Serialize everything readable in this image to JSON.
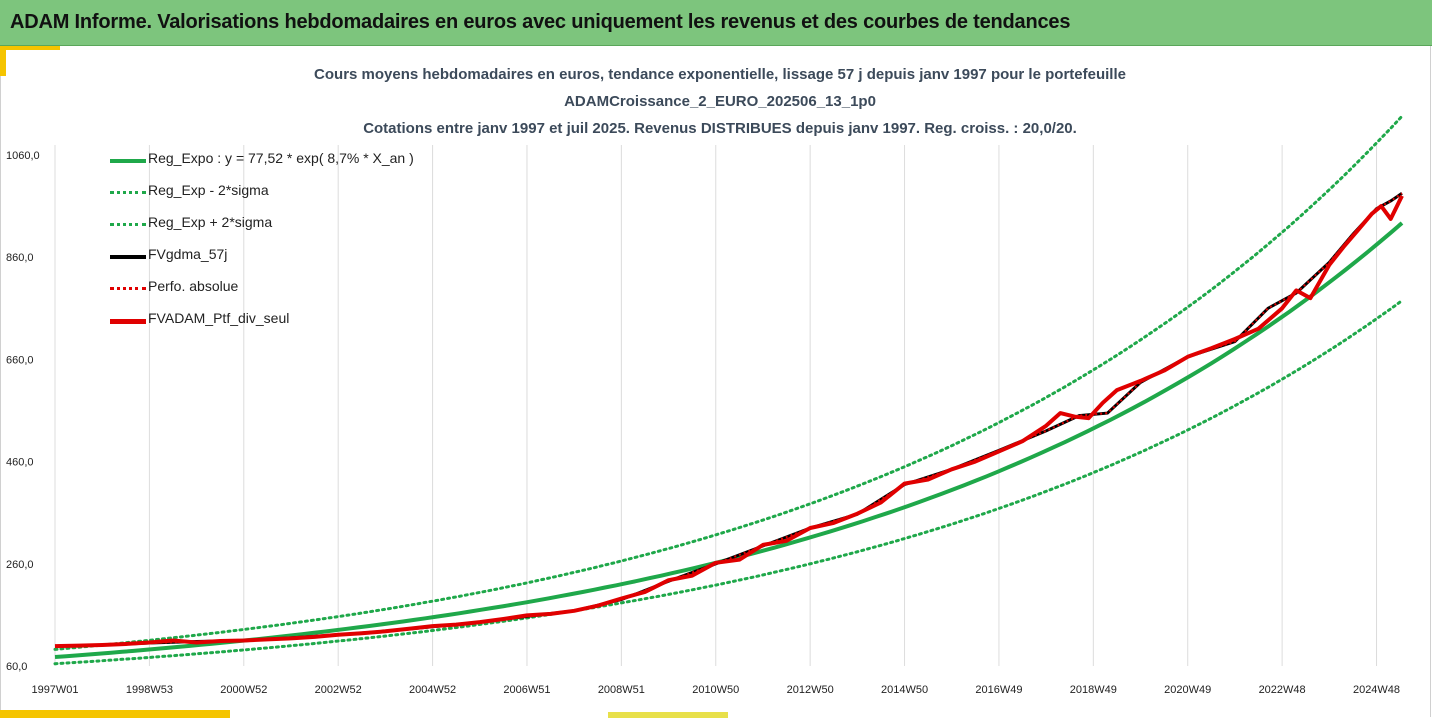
{
  "header": {
    "title": "ADAM Informe. Valorisations hebdomadaires en euros avec uniquement les revenus et des courbes de tendances"
  },
  "colors": {
    "header_bg": "#7dc57d",
    "accent": "#f5c400",
    "trend": "#1fa84a",
    "smoothed": "#000000",
    "perf": "#e00000"
  },
  "chart_data": {
    "type": "line",
    "title_lines": [
      "Cours moyens hebdomadaires  en euros, tendance exponentielle, lissage 57 j depuis janv 1997 pour le portefeuille",
      "ADAMCroissance_2_EURO_202506_13_1p0",
      "Cotations  entre janv 1997 et juil 2025. Revenus DISTRIBUES depuis janv 1997. Reg. croiss. : 20,0/20."
    ],
    "y_ticks": [
      "1060,0",
      "860,0",
      "660,0",
      "460,0",
      "260,0",
      "60,0"
    ],
    "y_tick_values": [
      1060,
      860,
      660,
      460,
      260,
      60
    ],
    "ylim": [
      60,
      1060
    ],
    "x_ticks": [
      "1997W01",
      "1998W53",
      "2000W52",
      "2002W52",
      "2004W52",
      "2006W51",
      "2008W51",
      "2010W50",
      "2012W50",
      "2014W50",
      "2016W49",
      "2018W49",
      "2020W49",
      "2022W48",
      "2024W48"
    ],
    "x_tick_years": [
      1997.0,
      1999.0,
      2001.0,
      2003.0,
      2005.0,
      2007.0,
      2009.0,
      2011.0,
      2013.0,
      2015.0,
      2017.0,
      2019.0,
      2021.0,
      2023.0,
      2025.0
    ],
    "xlim": [
      1997.0,
      2025.54
    ],
    "grid": "vertical",
    "legend_position": "top-left",
    "series": [
      {
        "name": "Reg_Expo : y = 77,52 * exp( 8,7% *  X_an )",
        "style": "solid",
        "color": "#1fa84a",
        "x": [
          1997.0,
          2025.54
        ],
        "y": [
          77.52,
          927
        ]
      },
      {
        "name": "Reg_Exp - 2*sigma",
        "style": "dotted",
        "color": "#1fa84a",
        "x": [
          1997.0,
          2025.54
        ],
        "y": [
          64.5,
          775
        ]
      },
      {
        "name": "Reg_Exp + 2*sigma",
        "style": "dotted",
        "color": "#1fa84a",
        "x": [
          1997.0,
          2025.54
        ],
        "y": [
          92.5,
          1136
        ]
      },
      {
        "name": "FVgdma_57j",
        "style": "solid",
        "color": "#000000",
        "x": [
          1997.0,
          1998.0,
          1999.0,
          2000.0,
          2001.0,
          2002.0,
          2003.0,
          2004.0,
          2005.0,
          2006.0,
          2007.0,
          2008.0,
          2009.0,
          2010.0,
          2011.0,
          2012.0,
          2013.0,
          2014.0,
          2015.0,
          2016.0,
          2017.0,
          2018.0,
          2018.7,
          2019.3,
          2020.0,
          2021.0,
          2022.0,
          2022.7,
          2023.3,
          2024.0,
          2024.5,
          2025.0,
          2025.3,
          2025.54
        ],
        "y": [
          99,
          101,
          105,
          108,
          110,
          115,
          121,
          128,
          137,
          146,
          157,
          168,
          190,
          226,
          260,
          295,
          330,
          357,
          415,
          445,
          482,
          520,
          550,
          555,
          615,
          665,
          695,
          760,
          790,
          850,
          905,
          955,
          970,
          985
        ]
      },
      {
        "name": "Perfo. absolue",
        "style": "dotted",
        "color": "#e00000",
        "x": [
          1997.0,
          1998.0,
          1999.0,
          2000.0,
          2001.0,
          2002.0,
          2003.0,
          2004.0,
          2005.0,
          2006.0,
          2007.0,
          2008.0,
          2009.0,
          2010.0,
          2011.0,
          2012.0,
          2013.0,
          2014.0,
          2015.0,
          2016.0,
          2017.0,
          2018.0,
          2018.7,
          2019.3,
          2020.0,
          2021.0,
          2022.0,
          2022.7,
          2023.3,
          2024.0,
          2024.5,
          2025.0,
          2025.3,
          2025.54
        ],
        "y": [
          99,
          101,
          105,
          108,
          110,
          115,
          121,
          128,
          137,
          146,
          157,
          168,
          190,
          226,
          260,
          295,
          330,
          357,
          415,
          445,
          482,
          520,
          550,
          555,
          615,
          665,
          695,
          760,
          790,
          850,
          905,
          955,
          970,
          985
        ]
      },
      {
        "name": "FVADAM_Ptf_div_seul",
        "style": "solid",
        "color": "#e00000",
        "x": [
          1997.0,
          1997.5,
          1998.0,
          1998.5,
          1999.0,
          1999.5,
          2000.0,
          2000.5,
          2001.0,
          2001.5,
          2002.0,
          2002.5,
          2003.0,
          2003.5,
          2004.0,
          2004.5,
          2005.0,
          2005.5,
          2006.0,
          2006.5,
          2007.0,
          2007.5,
          2008.0,
          2008.5,
          2009.0,
          2009.5,
          2010.0,
          2010.5,
          2011.0,
          2011.5,
          2012.0,
          2012.5,
          2013.0,
          2013.5,
          2014.0,
          2014.5,
          2015.0,
          2015.5,
          2016.0,
          2016.5,
          2017.0,
          2017.5,
          2018.0,
          2018.3,
          2018.6,
          2018.9,
          2019.2,
          2019.5,
          2020.0,
          2020.5,
          2021.0,
          2021.5,
          2022.0,
          2022.5,
          2023.0,
          2023.3,
          2023.6,
          2024.0,
          2024.3,
          2024.6,
          2024.9,
          2025.1,
          2025.3,
          2025.54
        ],
        "y": [
          99,
          100,
          101,
          103,
          106,
          110,
          106,
          109,
          110,
          112,
          114,
          117,
          121,
          124,
          128,
          133,
          138,
          141,
          146,
          152,
          159,
          162,
          168,
          178,
          192,
          205,
          228,
          237,
          262,
          268,
          297,
          305,
          330,
          340,
          358,
          380,
          417,
          425,
          445,
          460,
          480,
          500,
          530,
          555,
          548,
          545,
          575,
          600,
          618,
          638,
          665,
          682,
          700,
          720,
          760,
          795,
          780,
          845,
          880,
          912,
          945,
          960,
          935,
          980
        ]
      }
    ]
  }
}
